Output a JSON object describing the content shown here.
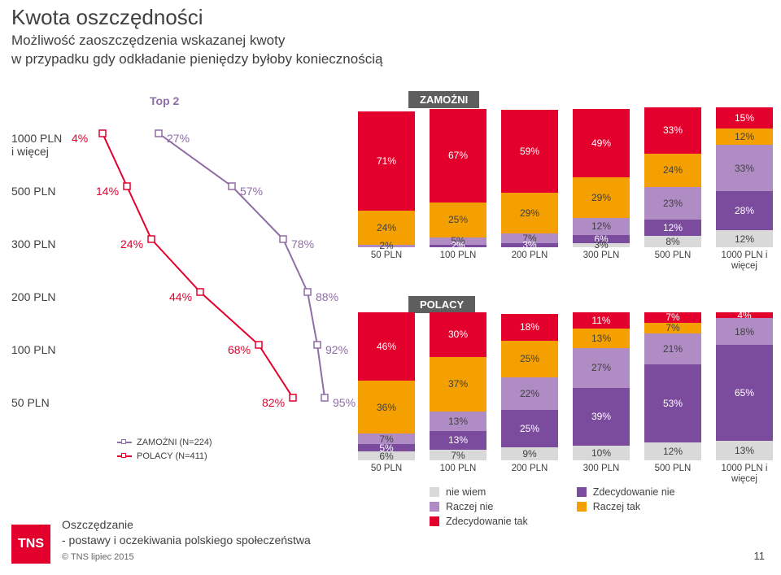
{
  "title": "Kwota oszczędności",
  "subtitle_line1": "Możliwość zaoszczędzenia wskazanej kwoty",
  "subtitle_line2": "w przypadku gdy odkładanie pieniędzy byłoby koniecznością",
  "top2_label": "Top 2",
  "colors": {
    "zamozni_line": "#8f6da6",
    "polacy_line": "#e3002d",
    "niewiem": "#d9d9d9",
    "zdec_nie": "#7b4b9e",
    "raczej_nie": "#b08cc4",
    "raczej_tak": "#f4a000",
    "zdec_tak": "#e3002d",
    "text": "#404040",
    "tag_bg": "#5e5e5e"
  },
  "left_chart": {
    "categories": [
      "1000 PLN\ni więcej",
      "500 PLN",
      "300 PLN",
      "200 PLN",
      "100 PLN",
      "50 PLN"
    ],
    "zamozni": [
      27,
      57,
      78,
      88,
      92,
      95
    ],
    "polacy": [
      4,
      14,
      24,
      44,
      68,
      82
    ],
    "legend_zamozni": "ZAMOŻNI (N=224)",
    "legend_polacy": "POLACY (N=411)"
  },
  "zamozni_chart": {
    "tag": "ZAMOŻNI",
    "x": [
      "50 PLN",
      "100 PLN",
      "200 PLN",
      "300 PLN",
      "500 PLN",
      "1000 PLN i\nwięcej"
    ],
    "stacks": [
      [
        {
          "v": 71,
          "c": "zdec_tak",
          "t": "light"
        },
        {
          "v": 24,
          "c": "raczej_tak",
          "t": "dark"
        },
        {
          "v": 2,
          "c": "raczej_nie",
          "t": "dark",
          "lbl": "2%"
        }
      ],
      [
        {
          "v": 67,
          "c": "zdec_tak",
          "t": "light"
        },
        {
          "v": 25,
          "c": "raczej_tak",
          "t": "dark"
        },
        {
          "v": 5,
          "c": "raczej_nie",
          "t": "dark",
          "lbl": "5%"
        },
        {
          "v": 2,
          "c": "zdec_nie",
          "t": "light",
          "lbl": "2%"
        }
      ],
      [
        {
          "v": 59,
          "c": "zdec_tak",
          "t": "light"
        },
        {
          "v": 29,
          "c": "raczej_tak",
          "t": "dark"
        },
        {
          "v": 7,
          "c": "raczej_nie",
          "t": "dark",
          "lbl": "7%"
        },
        {
          "v": 3,
          "c": "zdec_nie",
          "t": "light",
          "lbl": "3%"
        }
      ],
      [
        {
          "v": 49,
          "c": "zdec_tak",
          "t": "light"
        },
        {
          "v": 29,
          "c": "raczej_tak",
          "t": "dark"
        },
        {
          "v": 12,
          "c": "raczej_nie",
          "t": "dark"
        },
        {
          "v": 6,
          "c": "zdec_nie",
          "t": "light",
          "lbl": "6%"
        },
        {
          "v": 3,
          "c": "niewiem",
          "t": "dark",
          "lbl": "3%"
        }
      ],
      [
        {
          "v": 33,
          "c": "zdec_tak",
          "t": "light"
        },
        {
          "v": 24,
          "c": "raczej_tak",
          "t": "dark"
        },
        {
          "v": 23,
          "c": "raczej_nie",
          "t": "dark"
        },
        {
          "v": 12,
          "c": "zdec_nie",
          "t": "light"
        },
        {
          "v": 8,
          "c": "niewiem",
          "t": "dark"
        }
      ],
      [
        {
          "v": 15,
          "c": "zdec_tak",
          "t": "light"
        },
        {
          "v": 12,
          "c": "raczej_tak",
          "t": "dark"
        },
        {
          "v": 33,
          "c": "raczej_nie",
          "t": "dark"
        },
        {
          "v": 28,
          "c": "zdec_nie",
          "t": "light"
        },
        {
          "v": 12,
          "c": "niewiem",
          "t": "dark"
        }
      ]
    ]
  },
  "polacy_chart": {
    "tag": "POLACY",
    "x": [
      "50 PLN",
      "100 PLN",
      "200 PLN",
      "300 PLN",
      "500 PLN",
      "1000 PLN i\nwięcej"
    ],
    "stacks": [
      [
        {
          "v": 46,
          "c": "zdec_tak",
          "t": "light"
        },
        {
          "v": 36,
          "c": "raczej_tak",
          "t": "dark"
        },
        {
          "v": 7,
          "c": "raczej_nie",
          "t": "dark",
          "lbl": "7%"
        },
        {
          "v": 5,
          "c": "zdec_nie",
          "t": "light",
          "lbl": "5%"
        },
        {
          "v": 6,
          "c": "niewiem",
          "t": "dark",
          "lbl": "6%"
        }
      ],
      [
        {
          "v": 30,
          "c": "zdec_tak",
          "t": "light"
        },
        {
          "v": 37,
          "c": "raczej_tak",
          "t": "dark"
        },
        {
          "v": 13,
          "c": "raczej_nie",
          "t": "dark"
        },
        {
          "v": 13,
          "c": "zdec_nie",
          "t": "light"
        },
        {
          "v": 7,
          "c": "niewiem",
          "t": "dark"
        }
      ],
      [
        {
          "v": 18,
          "c": "zdec_tak",
          "t": "light"
        },
        {
          "v": 25,
          "c": "raczej_tak",
          "t": "dark"
        },
        {
          "v": 22,
          "c": "raczej_nie",
          "t": "dark"
        },
        {
          "v": 25,
          "c": "zdec_nie",
          "t": "light"
        },
        {
          "v": 9,
          "c": "niewiem",
          "t": "dark"
        }
      ],
      [
        {
          "v": 11,
          "c": "zdec_tak",
          "t": "light"
        },
        {
          "v": 13,
          "c": "raczej_tak",
          "t": "dark"
        },
        {
          "v": 27,
          "c": "raczej_nie",
          "t": "dark"
        },
        {
          "v": 39,
          "c": "zdec_nie",
          "t": "light"
        },
        {
          "v": 10,
          "c": "niewiem",
          "t": "dark"
        }
      ],
      [
        {
          "v": 7,
          "c": "zdec_tak",
          "t": "light",
          "lbl": "7%"
        },
        {
          "v": 7,
          "c": "raczej_tak",
          "t": "dark",
          "lbl": "7%"
        },
        {
          "v": 21,
          "c": "raczej_nie",
          "t": "dark"
        },
        {
          "v": 53,
          "c": "zdec_nie",
          "t": "light"
        },
        {
          "v": 12,
          "c": "niewiem",
          "t": "dark"
        }
      ],
      [
        {
          "v": 4,
          "c": "zdec_tak",
          "t": "light",
          "lbl": "4%"
        },
        {
          "v": 18,
          "c": "raczej_nie",
          "t": "dark"
        },
        {
          "v": 65,
          "c": "zdec_nie",
          "t": "light"
        },
        {
          "v": 13,
          "c": "niewiem",
          "t": "dark"
        }
      ]
    ]
  },
  "stack_legend": {
    "items": [
      {
        "label": "nie wiem",
        "c": "niewiem"
      },
      {
        "label": "Zdecydowanie nie",
        "c": "zdec_nie"
      },
      {
        "label": "Raczej nie",
        "c": "raczej_nie"
      },
      {
        "label": "Raczej tak",
        "c": "raczej_tak"
      },
      {
        "label": "Zdecydowanie tak",
        "c": "zdec_tak"
      }
    ]
  },
  "footer": {
    "line1": "Oszczędzanie",
    "line2": "- postawy i oczekiwania polskiego społeczeństwa",
    "copyright": "© TNS lipiec 2015",
    "page": "11",
    "logo": "TNS"
  }
}
